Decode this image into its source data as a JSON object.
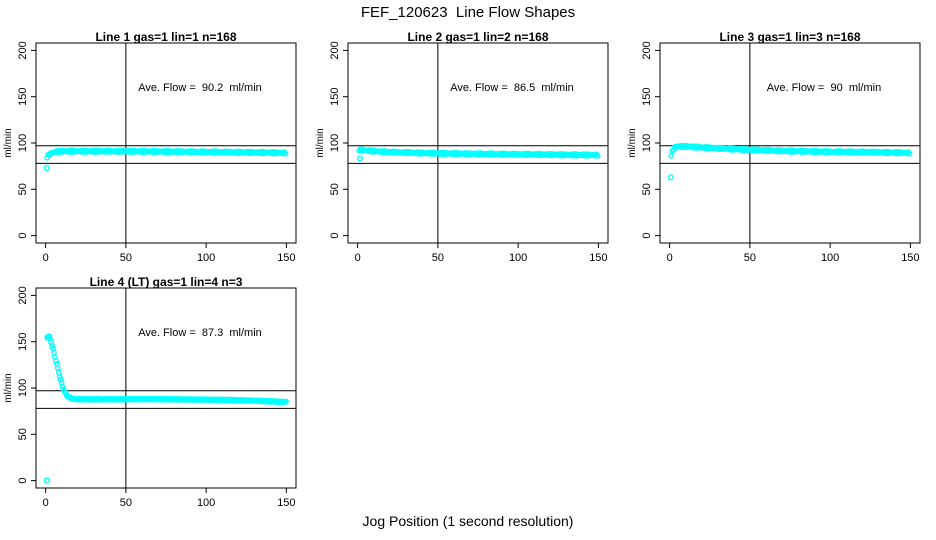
{
  "figure": {
    "title": "FEF_120623  Line Flow Shapes",
    "xlabel": "Jog Position (1 second resolution)",
    "background_color": "#ffffff",
    "axis_color": "#000000",
    "marker_color": "#00FFFF"
  },
  "chart_data": [
    {
      "type": "scatter",
      "title": "Line 1 gas=1 lin=1 n=168",
      "annotation": "Ave. Flow =  90.2  ml/min",
      "ave_flow": 90.2,
      "n": 168,
      "ylabel": "ml/min",
      "xlim": [
        -6,
        156
      ],
      "ylim": [
        -8,
        208
      ],
      "xticks": [
        0,
        50,
        100,
        150
      ],
      "yticks": [
        0,
        50,
        100,
        150,
        200
      ],
      "vline_x": 50,
      "hlines": [
        97,
        78
      ],
      "marker_color": "#00FFFF",
      "outliers": [
        [
          0.7,
          73
        ]
      ],
      "profile": [
        [
          1,
          85
        ],
        [
          2,
          87
        ],
        [
          4,
          89.5
        ],
        [
          7,
          90.8
        ],
        [
          12,
          91.2
        ],
        [
          60,
          91
        ],
        [
          100,
          90.3
        ],
        [
          130,
          89.8
        ],
        [
          150,
          89.3
        ]
      ],
      "step": 0.75,
      "band_jitter": 0.9
    },
    {
      "type": "scatter",
      "title": "Line 2 gas=1 lin=2 n=168",
      "annotation": "Ave. Flow =  86.5  ml/min",
      "ave_flow": 86.5,
      "n": 168,
      "ylabel": "ml/min",
      "xlim": [
        -6,
        156
      ],
      "ylim": [
        -8,
        208
      ],
      "xticks": [
        0,
        50,
        100,
        150
      ],
      "yticks": [
        0,
        50,
        100,
        150,
        200
      ],
      "vline_x": 50,
      "hlines": [
        97,
        78
      ],
      "marker_color": "#00FFFF",
      "outliers": [
        [
          1.5,
          83.5
        ]
      ],
      "profile": [
        [
          1,
          92.5
        ],
        [
          6,
          91.8
        ],
        [
          18,
          90.3
        ],
        [
          40,
          89.2
        ],
        [
          70,
          88.3
        ],
        [
          100,
          87.8
        ],
        [
          130,
          87.3
        ],
        [
          150,
          87
        ]
      ],
      "step": 0.75,
      "band_jitter": 0.9
    },
    {
      "type": "scatter",
      "title": "Line 3 gas=1 lin=3 n=168",
      "annotation": "Ave. Flow =  90  ml/min",
      "ave_flow": 90,
      "n": 168,
      "ylabel": "ml/min",
      "xlim": [
        -6,
        156
      ],
      "ylim": [
        -8,
        208
      ],
      "xticks": [
        0,
        50,
        100,
        150
      ],
      "yticks": [
        0,
        50,
        100,
        150,
        200
      ],
      "vline_x": 50,
      "hlines": [
        97,
        78
      ],
      "marker_color": "#00FFFF",
      "outliers": [
        [
          0.7,
          63
        ]
      ],
      "profile": [
        [
          1,
          87
        ],
        [
          2,
          92
        ],
        [
          3,
          95
        ],
        [
          5,
          96.3
        ],
        [
          10,
          96.3
        ],
        [
          22,
          95
        ],
        [
          45,
          93
        ],
        [
          70,
          91.5
        ],
        [
          100,
          90.5
        ],
        [
          130,
          90
        ],
        [
          150,
          89.3
        ]
      ],
      "step": 0.75,
      "band_jitter": 0.9
    },
    {
      "type": "scatter",
      "title": "Line 4 (LT) gas=1 lin=4 n=3",
      "annotation": "Ave. Flow =  87.3  ml/min",
      "ave_flow": 87.3,
      "n": 3,
      "ylabel": "ml/min",
      "xlim": [
        -6,
        156
      ],
      "ylim": [
        -8,
        208
      ],
      "xticks": [
        0,
        50,
        100,
        150
      ],
      "yticks": [
        0,
        50,
        100,
        150,
        200
      ],
      "vline_x": 50,
      "hlines": [
        97,
        78
      ],
      "marker_color": "#00FFFF",
      "outliers": [
        [
          0.8,
          0
        ]
      ],
      "profile": [
        [
          1,
          155
        ],
        [
          2,
          156
        ],
        [
          2.5,
          154.5
        ],
        [
          3,
          152
        ],
        [
          3.5,
          149
        ],
        [
          4,
          146
        ],
        [
          4.5,
          143
        ],
        [
          5,
          139.5
        ],
        [
          5.5,
          136
        ],
        [
          6,
          132.5
        ],
        [
          6.5,
          129
        ],
        [
          7,
          125.5
        ],
        [
          7.5,
          122
        ],
        [
          8,
          118.5
        ],
        [
          8.5,
          115
        ],
        [
          9,
          111.5
        ],
        [
          9.5,
          108
        ],
        [
          10,
          105
        ],
        [
          10.5,
          102
        ],
        [
          11,
          99.5
        ],
        [
          11.5,
          97.3
        ],
        [
          12,
          95.4
        ],
        [
          12.5,
          93.8
        ],
        [
          13.5,
          91.5
        ],
        [
          14.5,
          90
        ],
        [
          16,
          88.8
        ],
        [
          18,
          88.2
        ],
        [
          22,
          87.8
        ],
        [
          40,
          87.8
        ],
        [
          60,
          88
        ],
        [
          80,
          87.8
        ],
        [
          100,
          87.4
        ],
        [
          115,
          87
        ],
        [
          130,
          86.3
        ],
        [
          140,
          85.6
        ],
        [
          150,
          84.8
        ]
      ],
      "step": 0.6,
      "band_jitter": 0.6
    }
  ]
}
